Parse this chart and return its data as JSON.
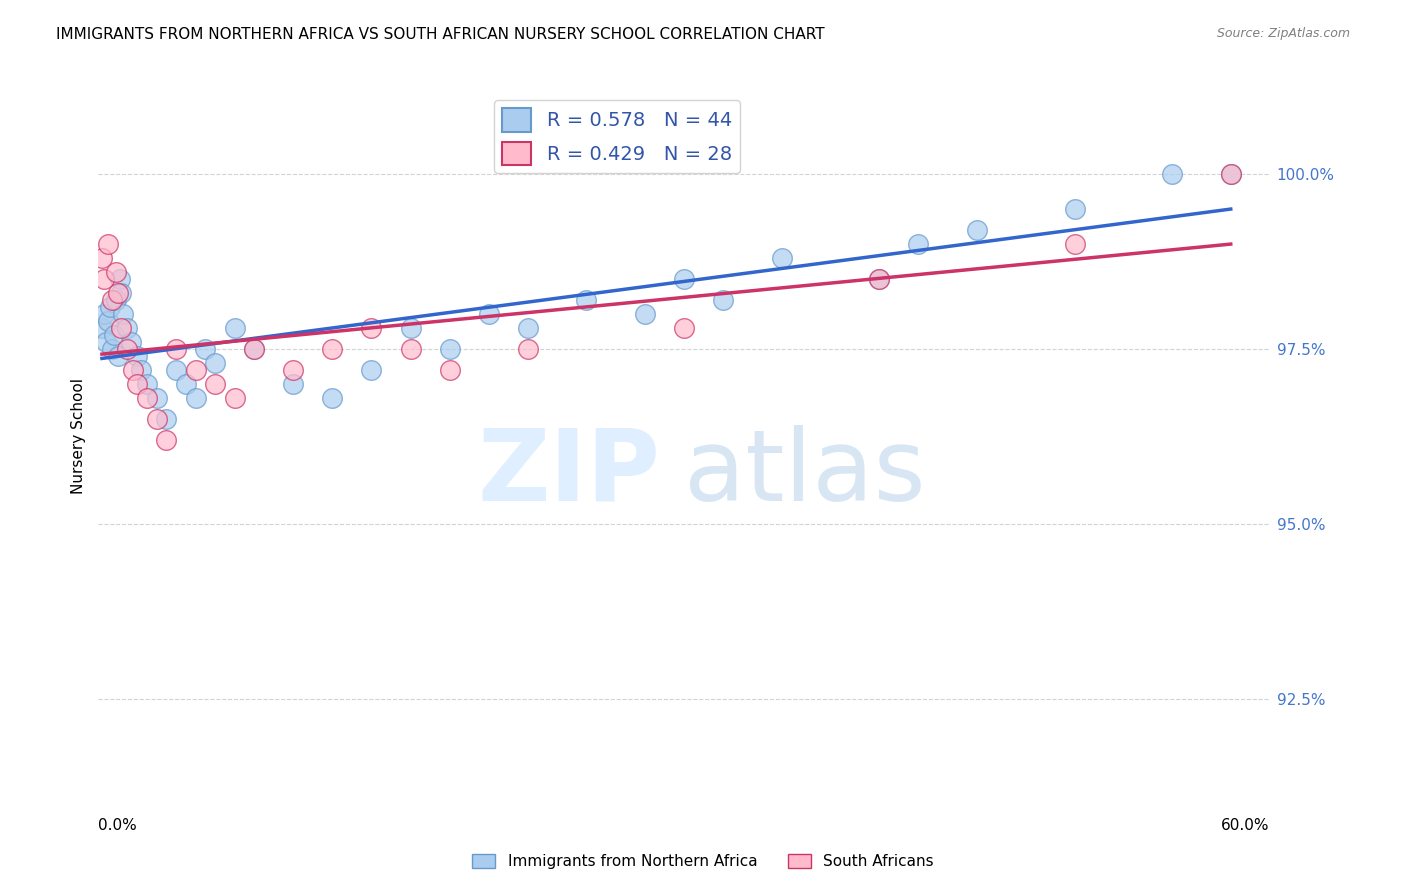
{
  "title": "IMMIGRANTS FROM NORTHERN AFRICA VS SOUTH AFRICAN NURSERY SCHOOL CORRELATION CHART",
  "source": "Source: ZipAtlas.com",
  "ylabel": "Nursery School",
  "legend1_label": "R = 0.578   N = 44",
  "legend2_label": "R = 0.429   N = 28",
  "legend1_color": "#6699cc",
  "legend2_color": "#ffaaaa",
  "trendline1_color": "#3366cc",
  "trendline2_color": "#cc3366",
  "scatter1_color": "#aaccee",
  "scatter2_color": "#ffbbcc",
  "background_color": "#ffffff",
  "xlim": [
    0.0,
    60.0
  ],
  "ylim": [
    91.0,
    101.5
  ],
  "ytick_vals": [
    92.5,
    95.0,
    97.5,
    100.0
  ],
  "ytick_labels": [
    "92.5%",
    "95.0%",
    "97.5%",
    "100.0%"
  ],
  "blue_x": [
    0.2,
    0.3,
    0.4,
    0.5,
    0.6,
    0.7,
    0.8,
    0.9,
    1.0,
    1.1,
    1.2,
    1.3,
    1.5,
    1.7,
    2.0,
    2.2,
    2.5,
    3.0,
    3.5,
    4.0,
    4.5,
    5.0,
    5.5,
    6.0,
    7.0,
    8.0,
    10.0,
    12.0,
    14.0,
    16.0,
    18.0,
    20.0,
    22.0,
    25.0,
    28.0,
    30.0,
    32.0,
    35.0,
    40.0,
    42.0,
    45.0,
    50.0,
    55.0,
    58.0
  ],
  "blue_y": [
    97.8,
    98.0,
    97.6,
    97.9,
    98.1,
    97.5,
    97.7,
    98.2,
    97.4,
    98.5,
    98.3,
    98.0,
    97.8,
    97.6,
    97.4,
    97.2,
    97.0,
    96.8,
    96.5,
    97.2,
    97.0,
    96.8,
    97.5,
    97.3,
    97.8,
    97.5,
    97.0,
    96.8,
    97.2,
    97.8,
    97.5,
    98.0,
    97.8,
    98.2,
    98.0,
    98.5,
    98.2,
    98.8,
    98.5,
    99.0,
    99.2,
    99.5,
    100.0,
    100.0
  ],
  "pink_x": [
    0.2,
    0.3,
    0.5,
    0.7,
    0.9,
    1.0,
    1.2,
    1.5,
    1.8,
    2.0,
    2.5,
    3.0,
    3.5,
    4.0,
    5.0,
    6.0,
    7.0,
    8.0,
    10.0,
    12.0,
    14.0,
    16.0,
    18.0,
    22.0,
    30.0,
    40.0,
    50.0,
    58.0
  ],
  "pink_y": [
    98.8,
    98.5,
    99.0,
    98.2,
    98.6,
    98.3,
    97.8,
    97.5,
    97.2,
    97.0,
    96.8,
    96.5,
    96.2,
    97.5,
    97.2,
    97.0,
    96.8,
    97.5,
    97.2,
    97.5,
    97.8,
    97.5,
    97.2,
    97.5,
    97.8,
    98.5,
    99.0,
    100.0
  ]
}
